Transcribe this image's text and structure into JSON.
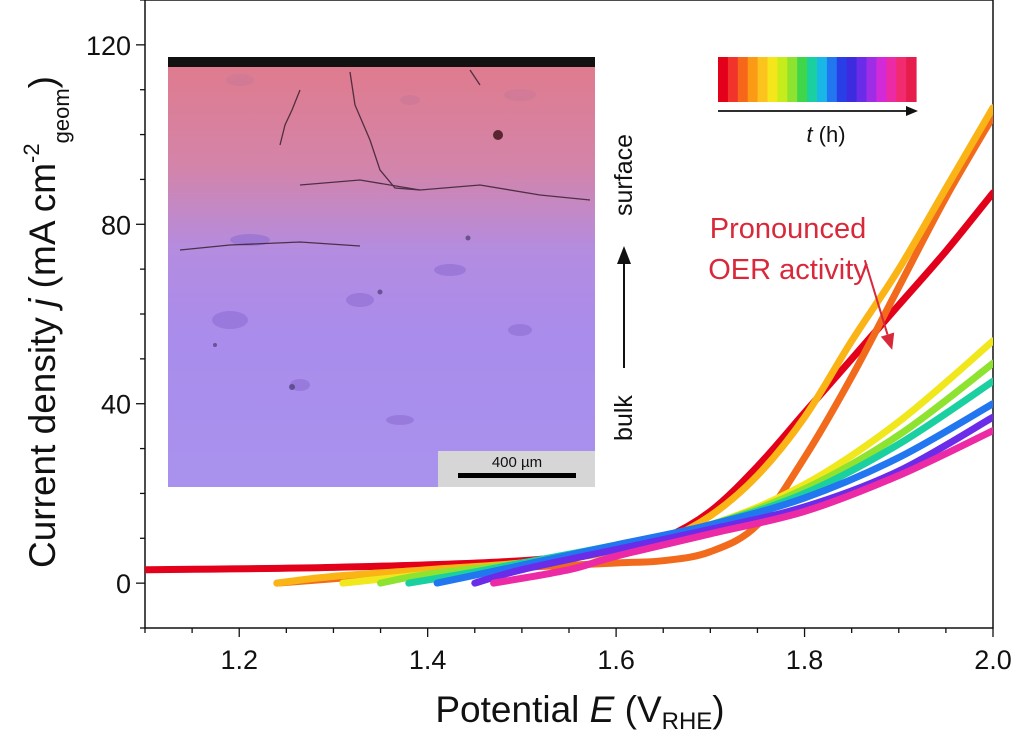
{
  "chart_data": {
    "type": "line",
    "xlabel_pre": "Potential ",
    "xlabel_var": "E",
    "xlabel_unit_open": " (V",
    "xlabel_unit_sub": "RHE",
    "xlabel_unit_close": ")",
    "ylabel_pre": "Current density ",
    "ylabel_var": "j",
    "ylabel_unit": " (mA cm",
    "ylabel_sup": "-2",
    "ylabel_sub": "geom",
    "ylabel_close": ")",
    "xlim": [
      1.1,
      2.0
    ],
    "ylim": [
      -10,
      130
    ],
    "x_ticks": [
      1.2,
      1.4,
      1.6,
      1.8,
      2.0
    ],
    "x_tick_labels": [
      "1.2",
      "1.4",
      "1.6",
      "1.8",
      "2.0"
    ],
    "y_ticks": [
      0,
      40,
      80,
      120
    ],
    "y_tick_labels": [
      "0",
      "40",
      "80",
      "120"
    ],
    "grid": false,
    "annotation": {
      "line1": "Pronounced",
      "line2": "OER activity",
      "color": "#d8283a",
      "arrow_from": [
        1.864,
        72
      ],
      "arrow_to": [
        1.893,
        52
      ]
    },
    "colorbar": {
      "label_var": "t",
      "label_unit": " (h)",
      "colors": [
        "#e3001b",
        "#f2332b",
        "#f7671a",
        "#fb9a14",
        "#fcc21d",
        "#f5e61b",
        "#c6ec1c",
        "#8de330",
        "#3fd64b",
        "#1bd0a0",
        "#19b6e8",
        "#2277f0",
        "#2a3ee8",
        "#3d2be0",
        "#6a2ce8",
        "#a02ce6",
        "#d22ad8",
        "#ec2aa6",
        "#f22a70",
        "#e61c4c"
      ]
    },
    "inset": {
      "scalebar_label": "400 µm",
      "label_bulk": "bulk",
      "label_surface": "surface"
    },
    "series": [
      {
        "color": "#e3001b",
        "x": [
          1.1,
          1.3,
          1.5,
          1.6,
          1.65,
          1.7,
          1.75,
          1.8,
          1.85,
          1.9,
          1.95,
          2.0
        ],
        "y": [
          3,
          3.5,
          5,
          7.5,
          10,
          16,
          26,
          38,
          50,
          62,
          74,
          87
        ]
      },
      {
        "color": "#f26a1b",
        "x": [
          1.24,
          1.3,
          1.4,
          1.5,
          1.6,
          1.65,
          1.7,
          1.75,
          1.8,
          1.85,
          1.9,
          1.95,
          2.0
        ],
        "y": [
          0,
          1,
          2.5,
          3.5,
          4.5,
          5,
          7,
          13,
          28,
          46,
          66,
          86,
          104
        ]
      },
      {
        "color": "#fbb416",
        "x": [
          1.24,
          1.3,
          1.4,
          1.5,
          1.6,
          1.65,
          1.7,
          1.75,
          1.8,
          1.85,
          1.9,
          1.95,
          2.0
        ],
        "y": [
          0,
          1.5,
          3,
          4.5,
          7,
          9.5,
          15,
          24,
          37,
          54,
          70,
          88,
          106
        ]
      },
      {
        "color": "#f0e81c",
        "x": [
          1.31,
          1.4,
          1.5,
          1.6,
          1.7,
          1.8,
          1.9,
          2.0
        ],
        "y": [
          0,
          2,
          4.5,
          8.5,
          13,
          22,
          36,
          54
        ]
      },
      {
        "color": "#8de330",
        "x": [
          1.35,
          1.4,
          1.5,
          1.6,
          1.7,
          1.8,
          1.9,
          2.0
        ],
        "y": [
          0,
          2,
          4.5,
          8.5,
          13,
          21,
          33,
          49
        ]
      },
      {
        "color": "#1bd0a0",
        "x": [
          1.38,
          1.45,
          1.5,
          1.6,
          1.7,
          1.8,
          1.9,
          2.0
        ],
        "y": [
          0,
          2.5,
          4.5,
          8.5,
          13,
          20,
          31,
          45
        ]
      },
      {
        "color": "#2277f0",
        "x": [
          1.41,
          1.5,
          1.6,
          1.7,
          1.8,
          1.9,
          2.0
        ],
        "y": [
          0,
          4,
          8.5,
          13,
          19,
          28,
          40
        ]
      },
      {
        "color": "#6a2ce8",
        "x": [
          1.45,
          1.5,
          1.6,
          1.7,
          1.8,
          1.9,
          2.0
        ],
        "y": [
          0,
          3,
          7.5,
          12,
          17,
          25,
          37
        ]
      },
      {
        "color": "#ec2aa6",
        "x": [
          1.47,
          1.55,
          1.6,
          1.7,
          1.8,
          1.9,
          2.0
        ],
        "y": [
          0,
          3,
          6,
          11,
          16,
          24,
          34
        ]
      }
    ]
  }
}
